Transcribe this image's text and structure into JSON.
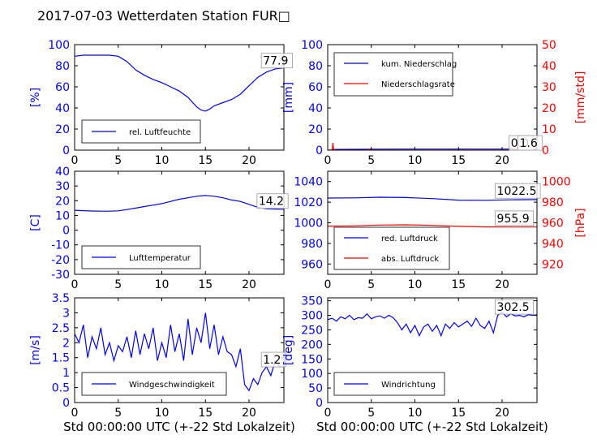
{
  "figure": {
    "title": "2017-07-03 Wetterdaten Station FUR□"
  },
  "chart_data": [
    {
      "id": "humidity",
      "type": "line",
      "ylabel": "[%]",
      "xlabel": "",
      "xlim": [
        0,
        24
      ],
      "xticks": [
        0,
        5,
        10,
        15,
        20
      ],
      "ylim": [
        0,
        100
      ],
      "yticks": [
        0,
        20,
        40,
        60,
        80,
        100
      ],
      "series": [
        {
          "name": "rel. Luftfeuchte",
          "color": "#0000ff",
          "x": [
            0,
            1,
            2,
            3,
            4,
            5,
            6,
            7,
            8,
            9,
            10,
            11,
            12,
            13,
            14,
            14.5,
            15,
            15.5,
            16,
            17,
            18,
            19,
            20,
            21,
            22,
            23,
            24
          ],
          "values": [
            89,
            90,
            90,
            90,
            90,
            89,
            84,
            76,
            71,
            67,
            64,
            60,
            56,
            50,
            41,
            38,
            37,
            39,
            42,
            45,
            48,
            53,
            61,
            69,
            74,
            77,
            78
          ]
        }
      ],
      "annotations": [
        {
          "text": "77.9",
          "x": 21.6,
          "y": 81
        }
      ]
    },
    {
      "id": "precip",
      "type": "line",
      "ylabel": "[mm]",
      "ylabel_right": "[mm/std]",
      "xlabel": "",
      "xlim": [
        0,
        24
      ],
      "xticks": [
        0,
        5,
        10,
        15,
        20
      ],
      "ylim": [
        0,
        100
      ],
      "yticks": [
        0,
        20,
        40,
        60,
        80,
        100
      ],
      "ylim_right": [
        0,
        50
      ],
      "yticks_right": [
        0,
        10,
        20,
        30,
        40,
        50
      ],
      "series": [
        {
          "name": "kum. Niederschlag",
          "color": "#0000ff",
          "axis": "left",
          "x": [
            0,
            0.4,
            0.6,
            1,
            5,
            10,
            15,
            20,
            24
          ],
          "values": [
            0,
            0,
            0.6,
            0.7,
            0.9,
            1.0,
            1.0,
            1.0,
            1.0
          ]
        },
        {
          "name": "Niederschlagsrate",
          "color": "#ff0000",
          "axis": "right",
          "x": [
            0,
            0.5,
            0.55,
            0.6,
            0.65,
            0.7,
            1,
            4.6,
            4.7,
            4.8,
            5,
            10,
            15,
            20,
            24
          ],
          "values": [
            0,
            0,
            1.5,
            3.5,
            1.2,
            0.3,
            0,
            0,
            0.5,
            0,
            0,
            0,
            0,
            0,
            0
          ]
        }
      ],
      "annotations": [
        {
          "text": "0.0",
          "x": 21,
          "y": 3,
          "axis": "left"
        },
        {
          "text": "1.6",
          "x": 22,
          "y": 1.5,
          "axis": "right"
        }
      ]
    },
    {
      "id": "temperature",
      "type": "line",
      "ylabel": "[C]",
      "xlabel": "",
      "xlim": [
        0,
        24
      ],
      "xticks": [
        0,
        5,
        10,
        15,
        20
      ],
      "ylim": [
        -30,
        40
      ],
      "yticks": [
        -30,
        -20,
        -10,
        0,
        10,
        20,
        30,
        40
      ],
      "series": [
        {
          "name": "Lufttemperatur",
          "color": "#0000ff",
          "x": [
            0,
            1,
            2,
            3,
            4,
            5,
            6,
            7,
            8,
            9,
            10,
            11,
            12,
            13,
            14,
            15,
            16,
            17,
            18,
            19,
            20,
            21,
            22,
            23,
            24
          ],
          "values": [
            13.5,
            13.2,
            13.0,
            12.9,
            12.9,
            13.1,
            14.0,
            15.0,
            16.0,
            17.0,
            18.0,
            19.5,
            21.0,
            22.0,
            23.0,
            23.5,
            23.0,
            22.0,
            20.5,
            19.5,
            17.5,
            15.5,
            14.5,
            14.3,
            14.2
          ]
        }
      ],
      "annotations": [
        {
          "text": "14.2",
          "x": 21.1,
          "y": 17
        }
      ]
    },
    {
      "id": "pressure",
      "type": "line",
      "ylabel": "",
      "ylabel_right": "[hPa]",
      "xlabel": "",
      "xlim": [
        0,
        24
      ],
      "xticks": [
        0,
        5,
        10,
        15,
        20
      ],
      "ylim": [
        950,
        1050
      ],
      "yticks": [
        960,
        980,
        1000,
        1020,
        1040
      ],
      "ylim_right": [
        910,
        1010
      ],
      "yticks_right": [
        920,
        940,
        960,
        980,
        1000
      ],
      "series": [
        {
          "name": "red. Luftdruck",
          "color": "#0000ff",
          "axis": "left",
          "x": [
            0,
            3,
            6,
            9,
            12,
            15,
            18,
            21,
            24
          ],
          "values": [
            1024.0,
            1024.2,
            1024.8,
            1024.5,
            1023.5,
            1022.0,
            1021.8,
            1022.3,
            1022.5
          ]
        },
        {
          "name": "abs. Luftdruck",
          "color": "#ff0000",
          "axis": "right",
          "x": [
            0,
            3,
            6,
            9,
            12,
            15,
            18,
            21,
            24
          ],
          "values": [
            956.8,
            957.0,
            957.8,
            958.0,
            957.5,
            956.5,
            956.0,
            955.9,
            955.9
          ]
        }
      ],
      "annotations": [
        {
          "text": "1022.5",
          "x": 19.4,
          "y": 1027,
          "axis": "left"
        },
        {
          "text": "955.9",
          "x": 19.4,
          "y": 960.5,
          "axis": "right"
        }
      ]
    },
    {
      "id": "windspeed",
      "type": "line",
      "ylabel": "[m/s]",
      "xlabel": "Std 00:00:00 UTC (+-22 Std Lokalzeit)",
      "xlim": [
        0,
        24
      ],
      "xticks": [
        0,
        5,
        10,
        15,
        20
      ],
      "ylim": [
        0,
        3.5
      ],
      "yticks": [
        0,
        0.5,
        1.0,
        1.5,
        2.0,
        2.5,
        3.0,
        3.5
      ],
      "series": [
        {
          "name": "Windgeschwindigkeit",
          "color": "#0000ff",
          "x": [
            0,
            0.5,
            1,
            1.5,
            2,
            2.5,
            3,
            3.5,
            4,
            4.5,
            5,
            5.5,
            6,
            6.5,
            7,
            7.5,
            8,
            8.5,
            9,
            9.5,
            10,
            10.5,
            11,
            11.5,
            12,
            12.5,
            13,
            13.5,
            14,
            14.5,
            15,
            15.5,
            16,
            16.5,
            17,
            17.5,
            18,
            18.5,
            19,
            19.5,
            20,
            20.5,
            21,
            21.5,
            22,
            22.5,
            23,
            23.5,
            24
          ],
          "values": [
            2.3,
            2.0,
            2.6,
            1.5,
            2.2,
            1.8,
            2.5,
            1.6,
            2.0,
            1.4,
            1.9,
            1.7,
            2.2,
            1.5,
            2.4,
            1.6,
            2.3,
            1.8,
            2.5,
            1.4,
            2.0,
            1.5,
            2.6,
            1.7,
            2.3,
            1.4,
            2.8,
            1.6,
            2.5,
            2.0,
            3.0,
            1.8,
            2.6,
            1.6,
            2.2,
            1.7,
            1.6,
            1.2,
            1.8,
            0.6,
            0.4,
            0.8,
            0.6,
            1.0,
            1.2,
            0.9,
            1.4,
            1.2,
            1.2
          ]
        }
      ],
      "annotations": [
        {
          "text": "1.2",
          "x": 21.6,
          "y": 1.3
        }
      ]
    },
    {
      "id": "winddir",
      "type": "line",
      "ylabel": "[deg]",
      "xlabel": "Std 00:00:00 UTC (+-22 Std Lokalzeit)",
      "xlim": [
        0,
        24
      ],
      "xticks": [
        0,
        5,
        10,
        15,
        20
      ],
      "ylim": [
        0,
        360
      ],
      "yticks": [
        0,
        50,
        100,
        150,
        200,
        250,
        300,
        350
      ],
      "series": [
        {
          "name": "Windrichtung",
          "color": "#0000ff",
          "x": [
            0,
            0.5,
            1,
            1.5,
            2,
            2.5,
            3,
            3.5,
            4,
            4.5,
            5,
            5.5,
            6,
            6.5,
            7,
            7.5,
            8,
            8.5,
            9,
            9.5,
            10,
            10.5,
            11,
            11.5,
            12,
            12.5,
            13,
            13.5,
            14,
            14.5,
            15,
            15.5,
            16,
            16.5,
            17,
            17.5,
            18,
            18.5,
            19,
            19.5,
            20,
            20.5,
            21,
            21.5,
            22,
            22.5,
            23,
            23.5,
            24
          ],
          "values": [
            285,
            290,
            280,
            295,
            288,
            300,
            285,
            292,
            290,
            305,
            288,
            295,
            298,
            290,
            300,
            292,
            275,
            250,
            270,
            240,
            265,
            230,
            260,
            270,
            245,
            265,
            230,
            270,
            255,
            275,
            260,
            270,
            280,
            262,
            290,
            265,
            255,
            280,
            240,
            300,
            310,
            295,
            305,
            298,
            300,
            295,
            302,
            300,
            302
          ]
        }
      ],
      "annotations": [
        {
          "text": "302.5",
          "x": 19.4,
          "y": 315
        }
      ]
    }
  ]
}
